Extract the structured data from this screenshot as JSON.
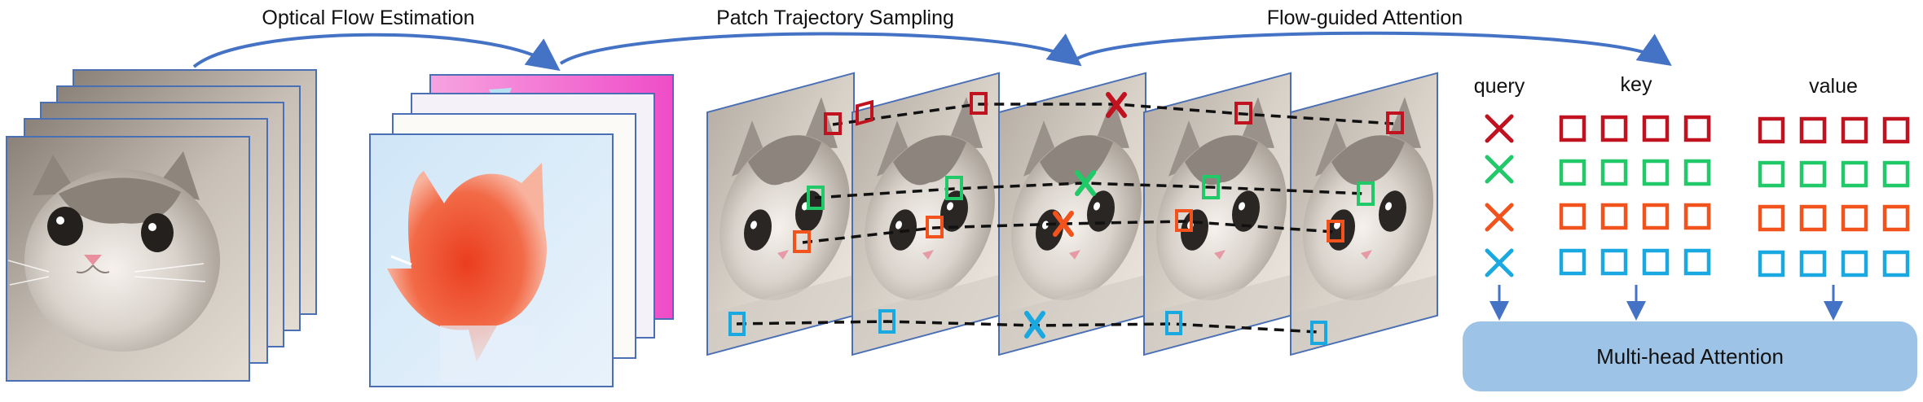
{
  "stages": {
    "flow_estimation": "Optical Flow Estimation",
    "trajectory_sampling": "Patch Trajectory Sampling",
    "flow_attention": "Flow-guided Attention"
  },
  "columns": {
    "query": "query",
    "key": "key",
    "value": "value"
  },
  "attention_module": "Multi-head Attention",
  "colors": {
    "arrow": "#4472c4",
    "red": "#c0121f",
    "green": "#21c968",
    "orange": "#f2521b",
    "blue": "#1aa8e0",
    "attention_box": "#9dc3e6"
  },
  "icons": {
    "query_marker": "cross-icon",
    "token_marker": "square-outline-icon"
  }
}
